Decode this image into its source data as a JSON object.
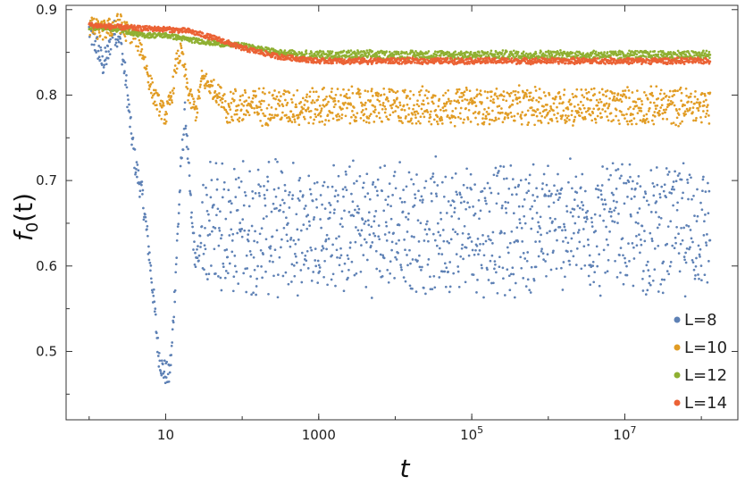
{
  "chart_data": {
    "type": "scatter",
    "title": "",
    "xlabel": "t",
    "ylabel": {
      "base": "f",
      "sub": "0",
      "tail": "(t)"
    },
    "x_scale": "log",
    "xlim": [
      0.5,
      300000000
    ],
    "ylim": [
      0.42,
      0.905
    ],
    "x_ticks": [
      {
        "value": 10,
        "label": "10"
      },
      {
        "value": 1000,
        "label": "1000"
      },
      {
        "value": 100000,
        "label": "10",
        "sup": "5"
      },
      {
        "value": 10000000,
        "label": "10",
        "sup": "7"
      }
    ],
    "y_ticks": [
      {
        "value": 0.5,
        "label": "0.5"
      },
      {
        "value": 0.6,
        "label": "0.6"
      },
      {
        "value": 0.7,
        "label": "0.7"
      },
      {
        "value": 0.8,
        "label": "0.8"
      },
      {
        "value": 0.9,
        "label": "0.9"
      }
    ],
    "grid": false,
    "legend_position": "bottom-right",
    "series": [
      {
        "name": "L=8",
        "color": "#5E81B5",
        "points": [
          [
            1,
            0.875
          ],
          [
            1.3,
            0.855
          ],
          [
            1.5,
            0.835
          ],
          [
            1.8,
            0.85
          ],
          [
            2,
            0.875
          ],
          [
            2.5,
            0.87
          ],
          [
            3,
            0.82
          ],
          [
            3.5,
            0.76
          ],
          [
            4,
            0.72
          ],
          [
            5,
            0.68
          ],
          [
            6,
            0.62
          ],
          [
            7,
            0.56
          ],
          [
            8,
            0.5
          ],
          [
            9,
            0.48
          ],
          [
            10,
            0.475
          ],
          [
            11,
            0.47
          ],
          [
            12,
            0.5
          ],
          [
            14,
            0.62
          ],
          [
            16,
            0.72
          ],
          [
            18,
            0.78
          ],
          [
            22,
            0.65
          ],
          [
            25,
            0.6
          ],
          [
            30,
            0.64
          ],
          [
            40,
            0.68
          ],
          [
            60,
            0.62
          ],
          [
            100,
            0.66
          ],
          [
            200,
            0.64
          ],
          [
            500,
            0.65
          ],
          [
            1000,
            0.64
          ],
          [
            10000,
            0.65
          ],
          [
            100000,
            0.64
          ],
          [
            1000000,
            0.65
          ],
          [
            10000000,
            0.64
          ],
          [
            100000000,
            0.65
          ]
        ],
        "band_from": 30,
        "band_center": 0.645,
        "band_halfwidth": 0.085
      },
      {
        "name": "L=10",
        "color": "#E19C24",
        "points": [
          [
            1,
            0.88
          ],
          [
            1.5,
            0.875
          ],
          [
            2,
            0.88
          ],
          [
            2.5,
            0.885
          ],
          [
            3,
            0.875
          ],
          [
            4,
            0.87
          ],
          [
            5,
            0.85
          ],
          [
            6,
            0.82
          ],
          [
            7,
            0.8
          ],
          [
            8,
            0.79
          ],
          [
            10,
            0.775
          ],
          [
            12,
            0.8
          ],
          [
            14,
            0.84
          ],
          [
            16,
            0.85
          ],
          [
            20,
            0.8
          ],
          [
            25,
            0.78
          ],
          [
            30,
            0.82
          ],
          [
            50,
            0.8
          ],
          [
            100,
            0.78
          ],
          [
            200,
            0.77
          ],
          [
            500,
            0.79
          ],
          [
            1000,
            0.785
          ],
          [
            10000,
            0.79
          ],
          [
            100000,
            0.79
          ],
          [
            1000000,
            0.785
          ],
          [
            10000000,
            0.79
          ],
          [
            100000000,
            0.785
          ]
        ],
        "band_from": 60,
        "band_center": 0.787,
        "band_halfwidth": 0.025
      },
      {
        "name": "L=12",
        "color": "#8FB032",
        "points": [
          [
            1,
            0.88
          ],
          [
            2,
            0.878
          ],
          [
            3,
            0.875
          ],
          [
            5,
            0.87
          ],
          [
            10,
            0.87
          ],
          [
            20,
            0.865
          ],
          [
            50,
            0.86
          ],
          [
            100,
            0.858
          ],
          [
            300,
            0.85
          ],
          [
            1000,
            0.848
          ],
          [
            10000,
            0.847
          ],
          [
            100000,
            0.847
          ],
          [
            1000000,
            0.847
          ],
          [
            10000000,
            0.846
          ],
          [
            100000000,
            0.846
          ]
        ],
        "band_from": 500,
        "band_center": 0.847,
        "band_halfwidth": 0.006
      },
      {
        "name": "L=14",
        "color": "#EB6235",
        "points": [
          [
            1,
            0.882
          ],
          [
            2,
            0.88
          ],
          [
            3,
            0.879
          ],
          [
            5,
            0.878
          ],
          [
            10,
            0.877
          ],
          [
            20,
            0.875
          ],
          [
            50,
            0.865
          ],
          [
            100,
            0.855
          ],
          [
            300,
            0.845
          ],
          [
            1000,
            0.84
          ],
          [
            3000,
            0.84
          ],
          [
            10000,
            0.842
          ],
          [
            100000,
            0.84
          ],
          [
            1000000,
            0.841
          ],
          [
            10000000,
            0.84
          ],
          [
            100000000,
            0.84
          ]
        ],
        "band_from": 2000,
        "band_center": 0.84,
        "band_halfwidth": 0.004
      }
    ]
  }
}
